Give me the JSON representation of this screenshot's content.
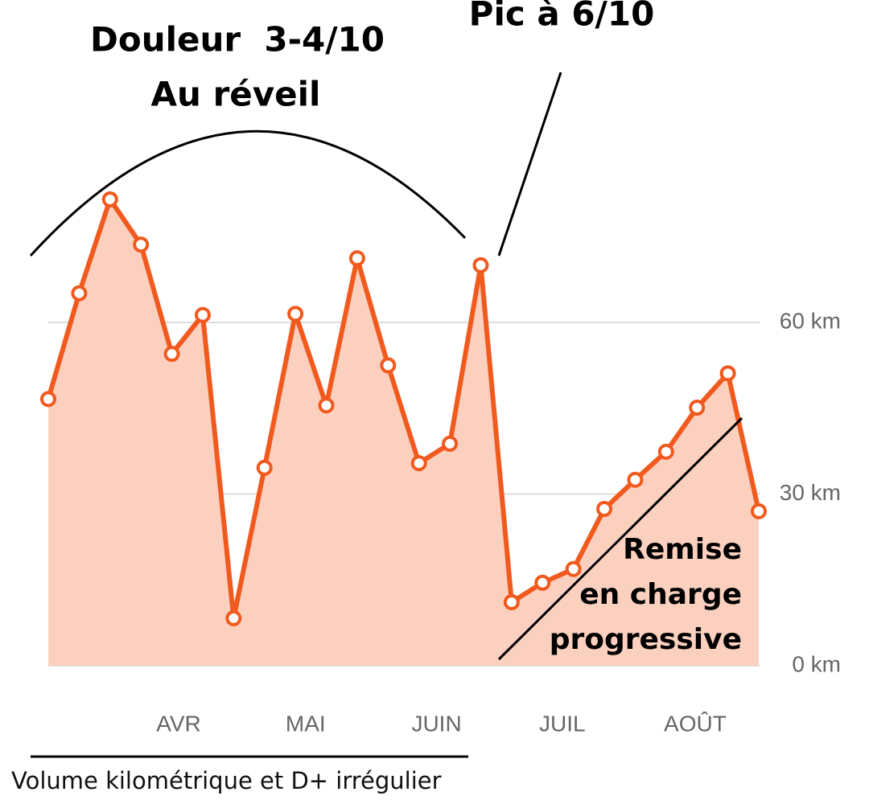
{
  "chart_data": {
    "type": "line",
    "x": [
      0,
      1,
      2,
      3,
      4,
      5,
      6,
      7,
      8,
      9,
      10,
      11,
      12,
      13,
      14,
      15,
      16,
      17,
      18,
      19,
      20,
      21,
      22,
      23
    ],
    "values": [
      46.6,
      65.1,
      81.5,
      73.6,
      54.5,
      61.3,
      8.3,
      34.6,
      61.5,
      45.5,
      71.2,
      52.5,
      35.4,
      38.8,
      70.0,
      11.1,
      14.5,
      16.9,
      27.4,
      32.5,
      37.4,
      45.1,
      51.1,
      27.0
    ],
    "color": "#f15a1e",
    "fill_color": "#fcd0bf",
    "xlim": [
      0,
      23
    ],
    "xticks": [
      {
        "value": 4.22,
        "label": "AVR"
      },
      {
        "value": 8.33,
        "label": "MAI"
      },
      {
        "value": 12.57,
        "label": "JUIN"
      },
      {
        "value": 16.64,
        "label": "JUIL"
      },
      {
        "value": 20.94,
        "label": "AOÛT"
      }
    ],
    "ylim": [
      0,
      90
    ],
    "yticks": [
      {
        "value": 0,
        "label": "0 km"
      },
      {
        "value": 30,
        "label": "30 km"
      },
      {
        "value": 60,
        "label": "60 km"
      }
    ],
    "grid": true,
    "annotations": [
      "Douleur  3-4/10",
      "Au réveil",
      "Pic à 6/10",
      "Remise",
      "en charge",
      "progressive",
      "Volume kilométrique et D+ irrégulier"
    ]
  }
}
